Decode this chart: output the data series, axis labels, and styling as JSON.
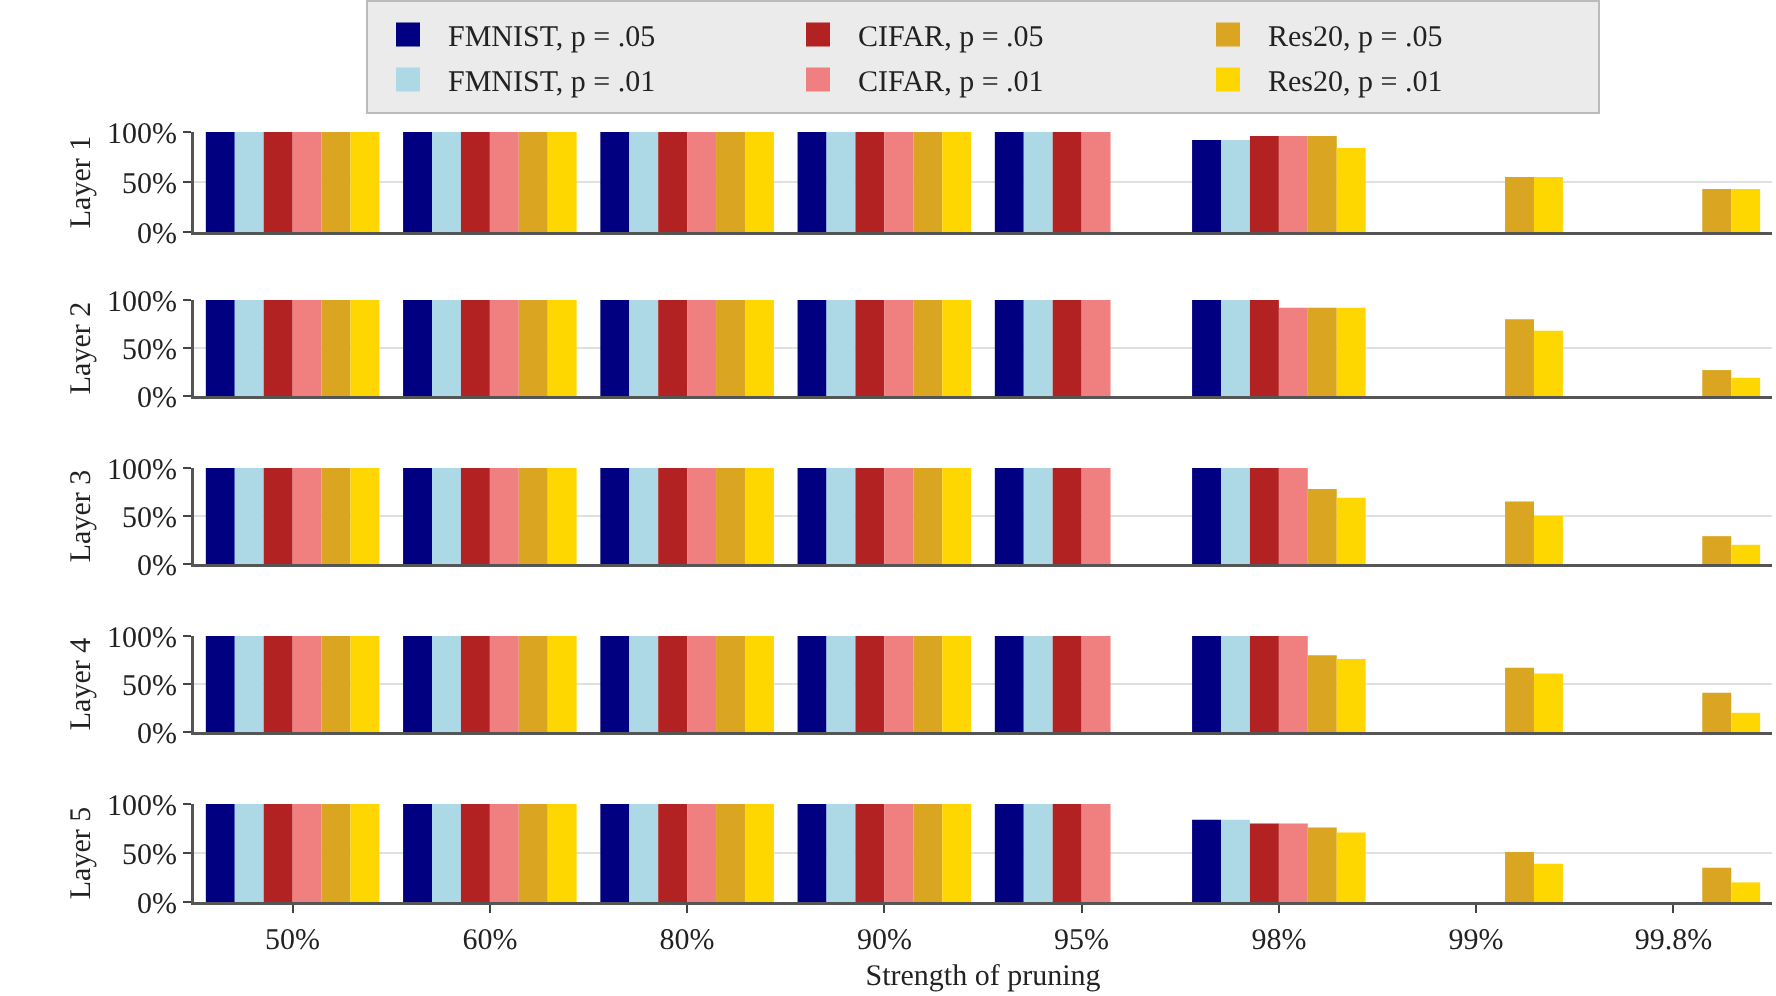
{
  "chart_data": [
    {
      "type": "bar",
      "ylabel": "Layer 1",
      "categories": [
        null,
        null,
        null,
        null,
        null,
        null,
        null,
        null
      ],
      "ylim": [
        0,
        100
      ],
      "yticks": [
        {
          "value": 0,
          "label": "0%"
        },
        {
          "value": 50,
          "label": "50%"
        },
        {
          "value": 100,
          "label": "100%"
        }
      ],
      "grid": "y",
      "legend": "top",
      "tick_labels": "y",
      "series": [
        {
          "name": "FMNIST, p = .05",
          "color": "#000080",
          "values": [
            100,
            100,
            100,
            100,
            100,
            92,
            null,
            null
          ]
        },
        {
          "name": "FMNIST, p = .01",
          "color": "#add8e6",
          "values": [
            100,
            100,
            100,
            100,
            100,
            92,
            null,
            null
          ]
        },
        {
          "name": "CIFAR, p = .05",
          "color": "#b22222",
          "values": [
            100,
            100,
            100,
            100,
            100,
            96,
            null,
            null
          ]
        },
        {
          "name": "CIFAR, p = .01",
          "color": "#f08080",
          "values": [
            100,
            100,
            100,
            100,
            100,
            96,
            null,
            null
          ]
        },
        {
          "name": "Res20, p = .05",
          "color": "#daa520",
          "values": [
            100,
            100,
            100,
            100,
            null,
            96,
            55,
            43
          ]
        },
        {
          "name": "Res20, p = .01",
          "color": "#ffd700",
          "values": [
            100,
            100,
            100,
            100,
            null,
            84,
            55,
            43
          ]
        }
      ]
    },
    {
      "type": "bar",
      "ylabel": "Layer 2",
      "categories": [
        null,
        null,
        null,
        null,
        null,
        null,
        null,
        null
      ],
      "ylim": [
        0,
        100
      ],
      "yticks": [
        {
          "value": 0,
          "label": "0%"
        },
        {
          "value": 50,
          "label": "50%"
        },
        {
          "value": 100,
          "label": "100%"
        }
      ],
      "grid": "y",
      "tick_labels": "y",
      "series": [
        {
          "color": "#000080",
          "values": [
            100,
            100,
            100,
            100,
            100,
            100,
            null,
            null
          ]
        },
        {
          "color": "#add8e6",
          "values": [
            100,
            100,
            100,
            100,
            100,
            100,
            null,
            null
          ]
        },
        {
          "color": "#b22222",
          "values": [
            100,
            100,
            100,
            100,
            100,
            100,
            null,
            null
          ]
        },
        {
          "color": "#f08080",
          "values": [
            100,
            100,
            100,
            100,
            100,
            92,
            null,
            null
          ]
        },
        {
          "color": "#daa520",
          "values": [
            100,
            100,
            100,
            100,
            null,
            92,
            80,
            27
          ]
        },
        {
          "color": "#ffd700",
          "values": [
            100,
            100,
            100,
            100,
            null,
            92,
            68,
            19
          ]
        }
      ]
    },
    {
      "type": "bar",
      "ylabel": "Layer 3",
      "categories": [
        null,
        null,
        null,
        null,
        null,
        null,
        null,
        null
      ],
      "ylim": [
        0,
        100
      ],
      "yticks": [
        {
          "value": 0,
          "label": "0%"
        },
        {
          "value": 50,
          "label": "50%"
        },
        {
          "value": 100,
          "label": "100%"
        }
      ],
      "grid": "y",
      "tick_labels": "y",
      "series": [
        {
          "color": "#000080",
          "values": [
            100,
            100,
            100,
            100,
            100,
            100,
            null,
            null
          ]
        },
        {
          "color": "#add8e6",
          "values": [
            100,
            100,
            100,
            100,
            100,
            100,
            null,
            null
          ]
        },
        {
          "color": "#b22222",
          "values": [
            100,
            100,
            100,
            100,
            100,
            100,
            null,
            null
          ]
        },
        {
          "color": "#f08080",
          "values": [
            100,
            100,
            100,
            100,
            100,
            100,
            null,
            null
          ]
        },
        {
          "color": "#daa520",
          "values": [
            100,
            100,
            100,
            100,
            null,
            78,
            65,
            29
          ]
        },
        {
          "color": "#ffd700",
          "values": [
            100,
            100,
            100,
            100,
            null,
            69,
            50,
            20
          ]
        }
      ]
    },
    {
      "type": "bar",
      "ylabel": "Layer 4",
      "categories": [
        null,
        null,
        null,
        null,
        null,
        null,
        null,
        null
      ],
      "ylim": [
        0,
        100
      ],
      "yticks": [
        {
          "value": 0,
          "label": "0%"
        },
        {
          "value": 50,
          "label": "50%"
        },
        {
          "value": 100,
          "label": "100%"
        }
      ],
      "grid": "y",
      "tick_labels": "y",
      "series": [
        {
          "color": "#000080",
          "values": [
            100,
            100,
            100,
            100,
            100,
            100,
            null,
            null
          ]
        },
        {
          "color": "#add8e6",
          "values": [
            100,
            100,
            100,
            100,
            100,
            100,
            null,
            null
          ]
        },
        {
          "color": "#b22222",
          "values": [
            100,
            100,
            100,
            100,
            100,
            100,
            null,
            null
          ]
        },
        {
          "color": "#f08080",
          "values": [
            100,
            100,
            100,
            100,
            100,
            100,
            null,
            null
          ]
        },
        {
          "color": "#daa520",
          "values": [
            100,
            100,
            100,
            100,
            null,
            80,
            67,
            41
          ]
        },
        {
          "color": "#ffd700",
          "values": [
            100,
            100,
            100,
            100,
            null,
            76,
            61,
            20
          ]
        }
      ]
    },
    {
      "type": "bar",
      "ylabel": "Layer 5",
      "xlabel": "Strength of pruning",
      "categories": [
        "50%",
        "60%",
        "80%",
        "90%",
        "95%",
        "98%",
        "99%",
        "99.8%"
      ],
      "ylim": [
        0,
        100
      ],
      "yticks": [
        {
          "value": 0,
          "label": "0%"
        },
        {
          "value": 50,
          "label": "50%"
        },
        {
          "value": 100,
          "label": "100%"
        }
      ],
      "grid": "y",
      "series": [
        {
          "color": "#000080",
          "values": [
            100,
            100,
            100,
            100,
            100,
            84,
            null,
            null
          ]
        },
        {
          "color": "#add8e6",
          "values": [
            100,
            100,
            100,
            100,
            100,
            84,
            null,
            null
          ]
        },
        {
          "color": "#b22222",
          "values": [
            100,
            100,
            100,
            100,
            100,
            80,
            null,
            null
          ]
        },
        {
          "color": "#f08080",
          "values": [
            100,
            100,
            100,
            100,
            100,
            80,
            null,
            null
          ]
        },
        {
          "color": "#daa520",
          "values": [
            100,
            100,
            100,
            100,
            null,
            76,
            51,
            35
          ]
        },
        {
          "color": "#ffd700",
          "values": [
            100,
            100,
            100,
            100,
            null,
            71,
            39,
            20
          ]
        }
      ]
    }
  ]
}
